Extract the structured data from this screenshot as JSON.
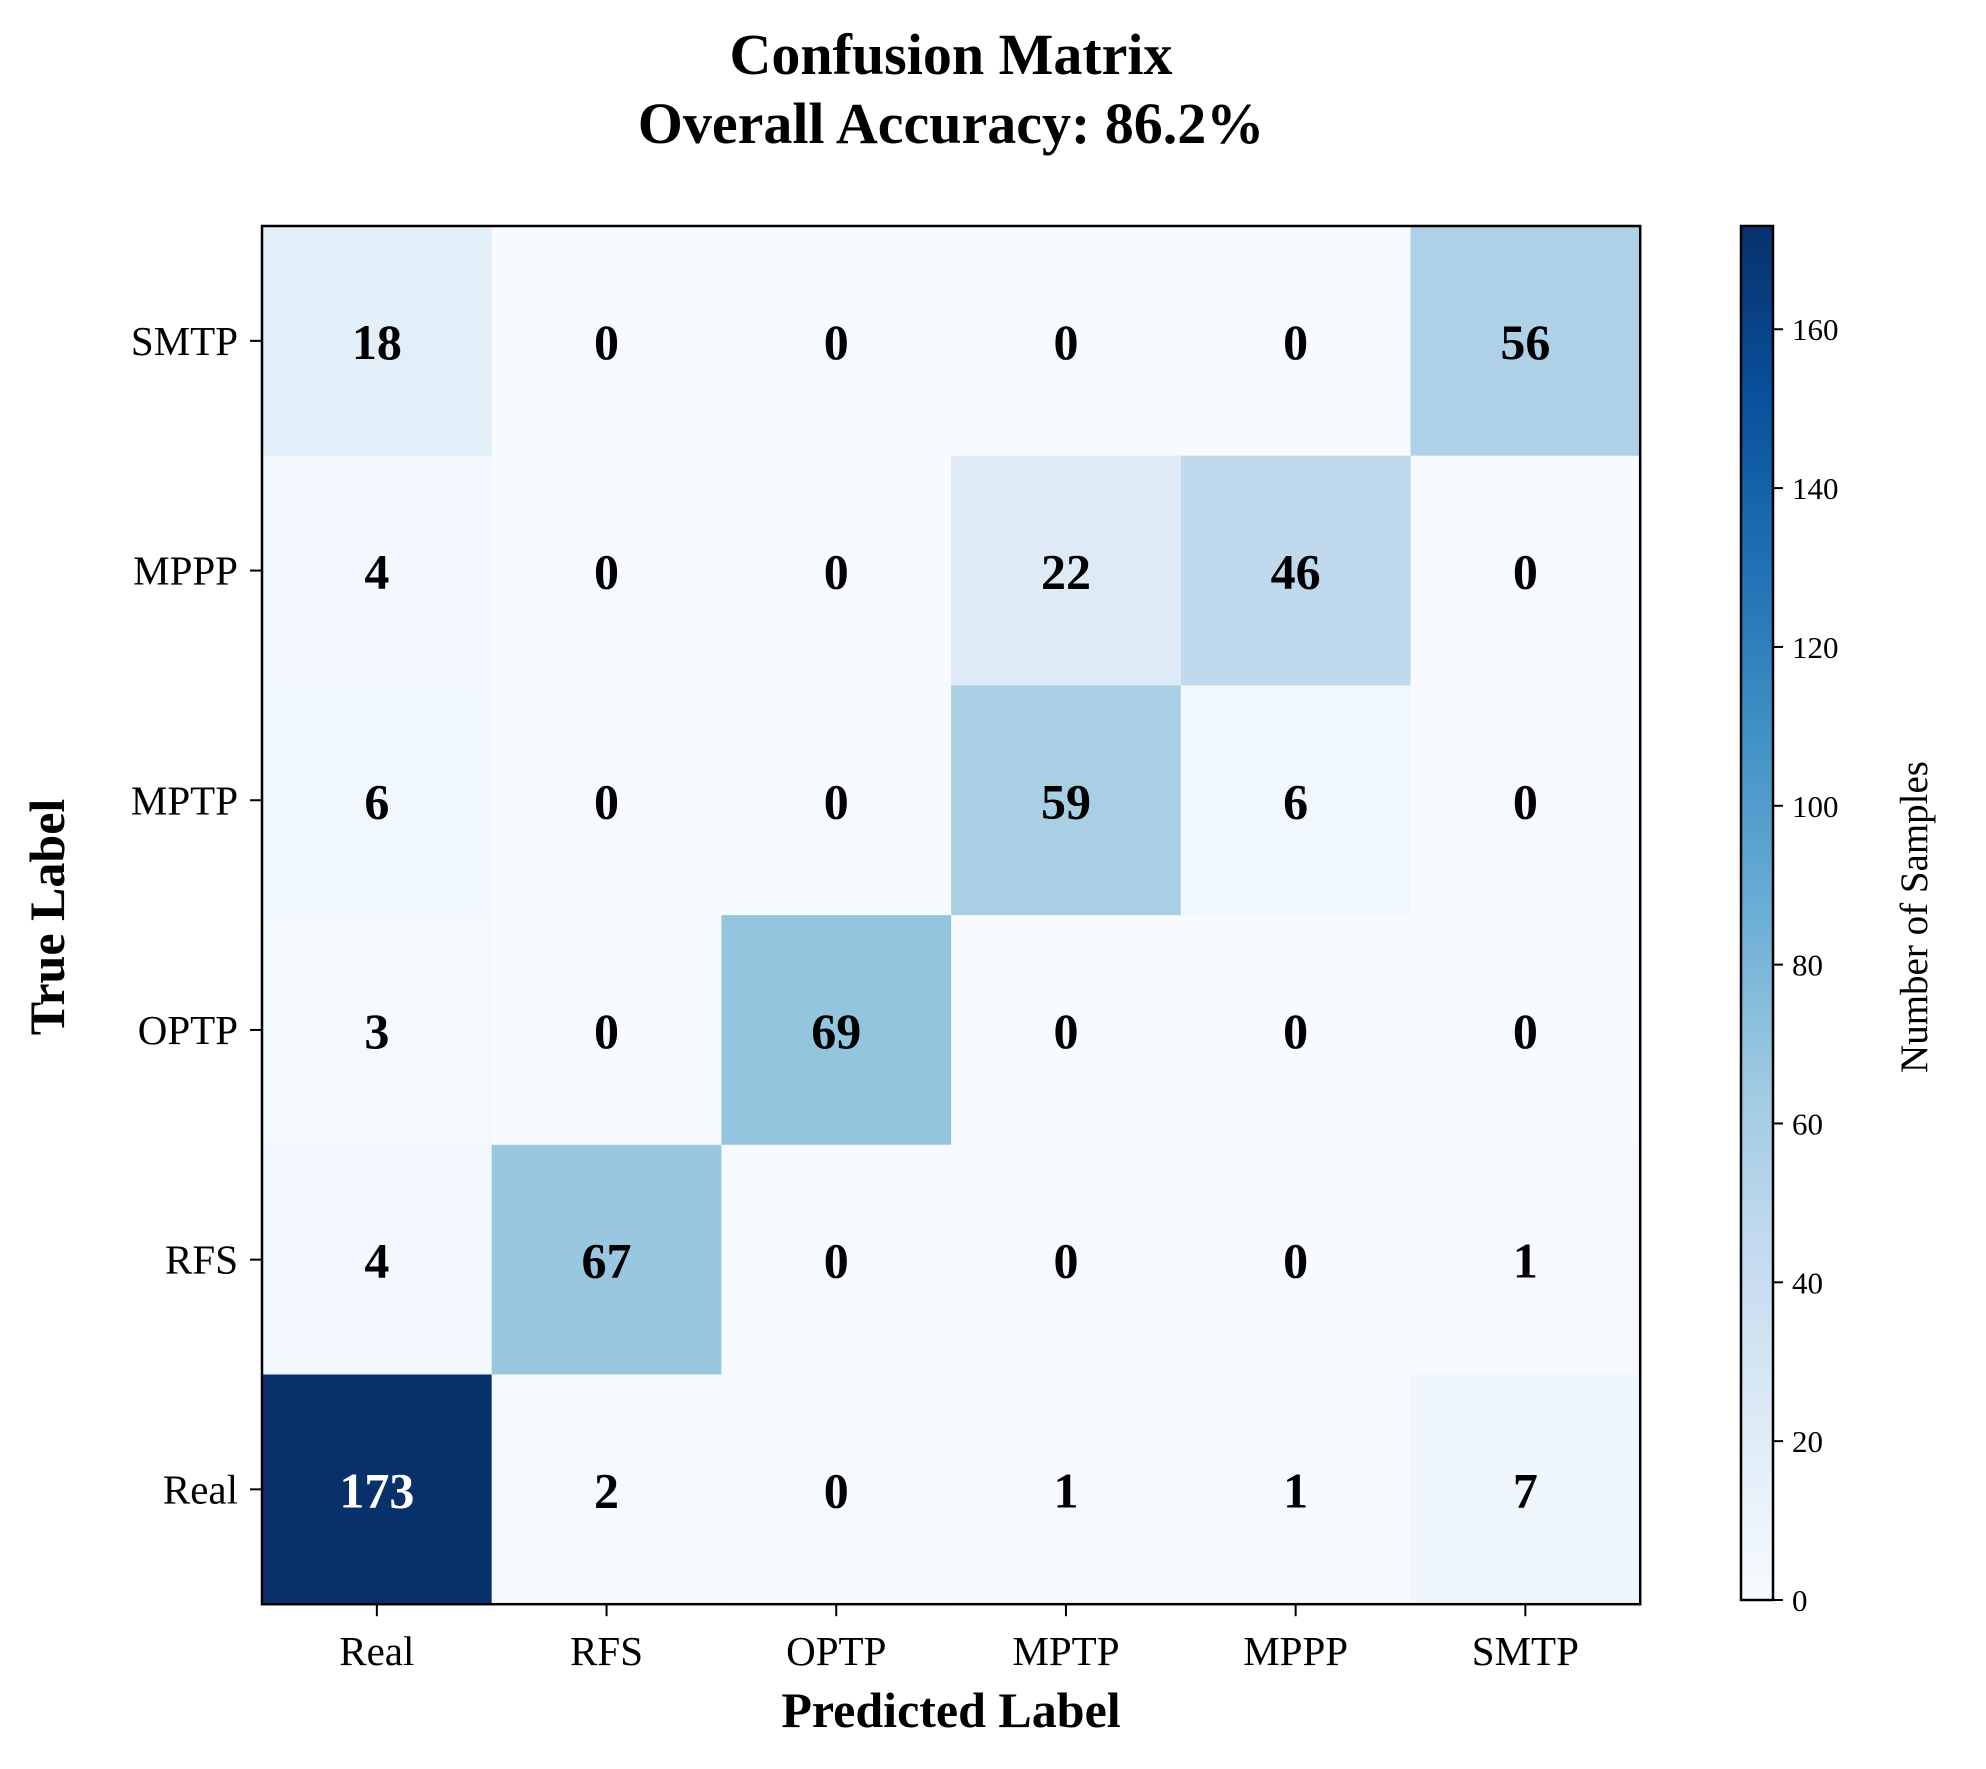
{
  "chart_data": {
    "type": "heatmap",
    "title_line1": "Confusion Matrix",
    "title_line2": "Overall Accuracy: 86.2%",
    "xlabel": "Predicted Label",
    "ylabel": "True Label",
    "x_categories": [
      "Real",
      "RFS",
      "OPTP",
      "MPTP",
      "MPPP",
      "SMTP"
    ],
    "y_categories_top_to_bottom": [
      "SMTP",
      "MPPP",
      "MPTP",
      "OPTP",
      "RFS",
      "Real"
    ],
    "matrix_top_to_bottom": [
      [
        18,
        0,
        0,
        0,
        0,
        56
      ],
      [
        4,
        0,
        0,
        22,
        46,
        0
      ],
      [
        6,
        0,
        0,
        59,
        6,
        0
      ],
      [
        3,
        0,
        69,
        0,
        0,
        0
      ],
      [
        4,
        67,
        0,
        0,
        0,
        1
      ],
      [
        173,
        2,
        0,
        1,
        1,
        7
      ]
    ],
    "colorbar": {
      "label": "Number of Samples",
      "min": 0,
      "max": 173,
      "ticks": [
        0,
        20,
        40,
        60,
        80,
        100,
        120,
        140,
        160
      ],
      "colormap": "Blues"
    },
    "colors": {
      "low": "#f7fbff",
      "high": "#08306b",
      "text_dark": "#000000",
      "text_light": "#ffffff"
    },
    "grid": false
  }
}
